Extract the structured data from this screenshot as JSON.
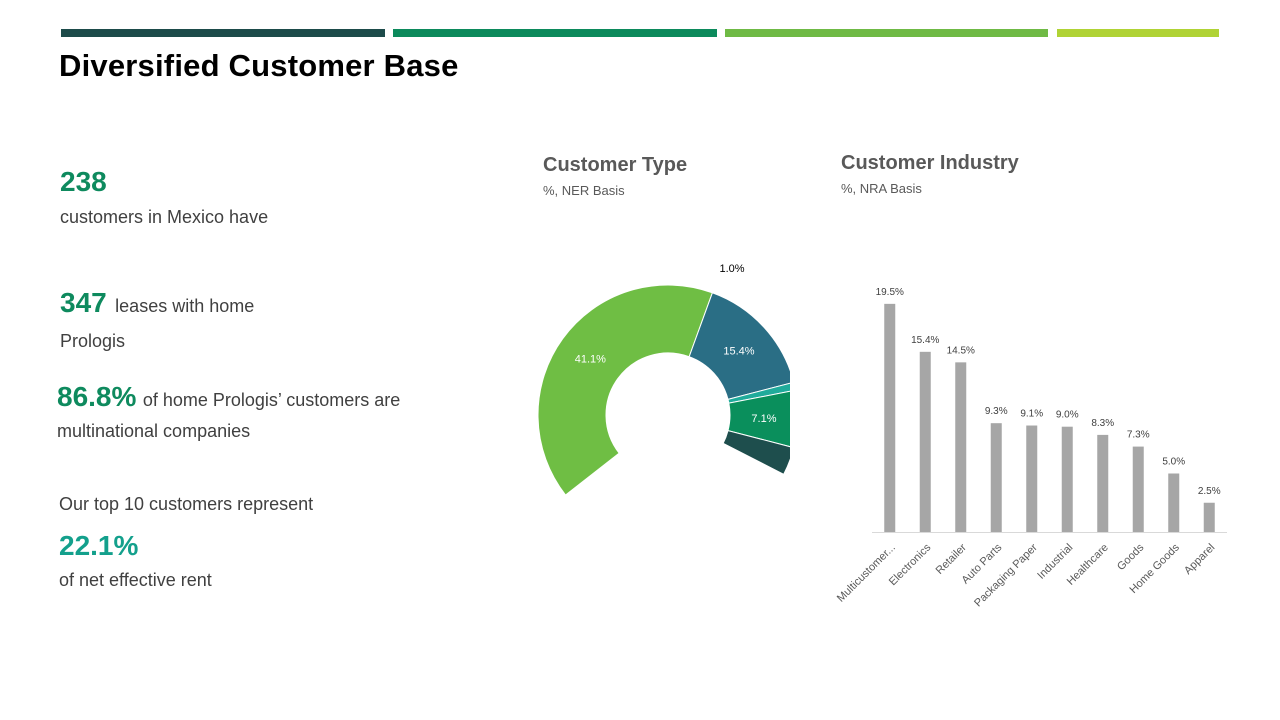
{
  "title": "Diversified Customer Base",
  "colors": {
    "strips": [
      "#1d4b4a",
      "#0c8a5c",
      "#6fba45",
      "#b0d335"
    ],
    "accent_green": "#0e8a5e",
    "accent_teal": "#13a08c",
    "bar_gray": "#a6a6a6"
  },
  "stats": {
    "s1_value": "238",
    "s1_text": "customers in Mexico  have",
    "s2_value": "347",
    "s2_text_a": "leases with home",
    "s2_text_b": "Prologis",
    "s3_value": "86.8%",
    "s3_text_a": "of home Prologis’  customers are",
    "s3_text_b": "multinational  companies",
    "s4_lead": "Our top 10 customers  represent",
    "s4_value": "22.1%",
    "s4_text": "of net effective  rent"
  },
  "chart_data": [
    {
      "type": "pie",
      "title": "Customer Type",
      "subtitle": "%, NER Basis",
      "slices": [
        {
          "label": "41.1%",
          "value": 41.1,
          "color": "#6fbe44"
        },
        {
          "label": "15.4%",
          "value": 15.4,
          "color": "#2a6e85"
        },
        {
          "label": "1.0%",
          "value": 1.0,
          "color": "#20ab9b"
        },
        {
          "label": "7.1%",
          "value": 7.1,
          "color": "#0a8f5c"
        },
        {
          "label": "",
          "value": 3.5,
          "color": "#1e4e4d"
        }
      ]
    },
    {
      "type": "bar",
      "title": "Customer Industry",
      "subtitle": "%, NRA Basis",
      "categories": [
        "Multicustomer...",
        "Electronics",
        "Retailer",
        "Auto Parts",
        "Packaging Paper",
        "Industrial",
        "Healthcare",
        "Goods",
        "Home Goods",
        "Apparel"
      ],
      "values": [
        19.5,
        15.4,
        14.5,
        9.3,
        9.1,
        9.0,
        8.3,
        7.3,
        5.0,
        2.5
      ],
      "labels": [
        "19.5%",
        "15.4%",
        "14.5%",
        "9.3%",
        "9.1%",
        "9.0%",
        "8.3%",
        "7.3%",
        "5.0%",
        "2.5%"
      ],
      "ylim": [
        0,
        20
      ]
    }
  ]
}
